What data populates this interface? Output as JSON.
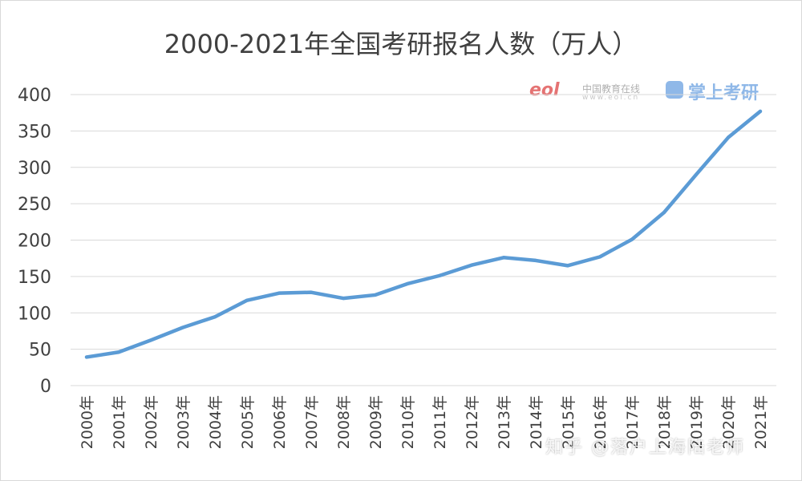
{
  "chart_data": {
    "type": "line",
    "title": "2000-2021年全国考研报名人数（万人）",
    "categories": [
      "2000年",
      "2001年",
      "2002年",
      "2003年",
      "2004年",
      "2005年",
      "2006年",
      "2007年",
      "2008年",
      "2009年",
      "2010年",
      "2011年",
      "2012年",
      "2013年",
      "2014年",
      "2015年",
      "2016年",
      "2017年",
      "2018年",
      "2019年",
      "2020年",
      "2021年"
    ],
    "series": [
      {
        "values": [
          39.2,
          46,
          62.4,
          79.9,
          94.5,
          117.2,
          127.1,
          128.2,
          120,
          124.6,
          140,
          151.1,
          165.6,
          176,
          172,
          164.9,
          177,
          201,
          238,
          290,
          341,
          377
        ]
      }
    ],
    "ylim": [
      0,
      400
    ],
    "yticks": [
      0,
      50,
      100,
      150,
      200,
      250,
      300,
      350,
      400
    ],
    "grid": true,
    "line_color": "#5b9bd5"
  },
  "logos": {
    "eol_text": "eol",
    "site_name": "中国教育在线",
    "site_url": "www.eol.cn",
    "app_name": "掌上考研"
  },
  "watermark": "知乎 @落户上海陆老师"
}
